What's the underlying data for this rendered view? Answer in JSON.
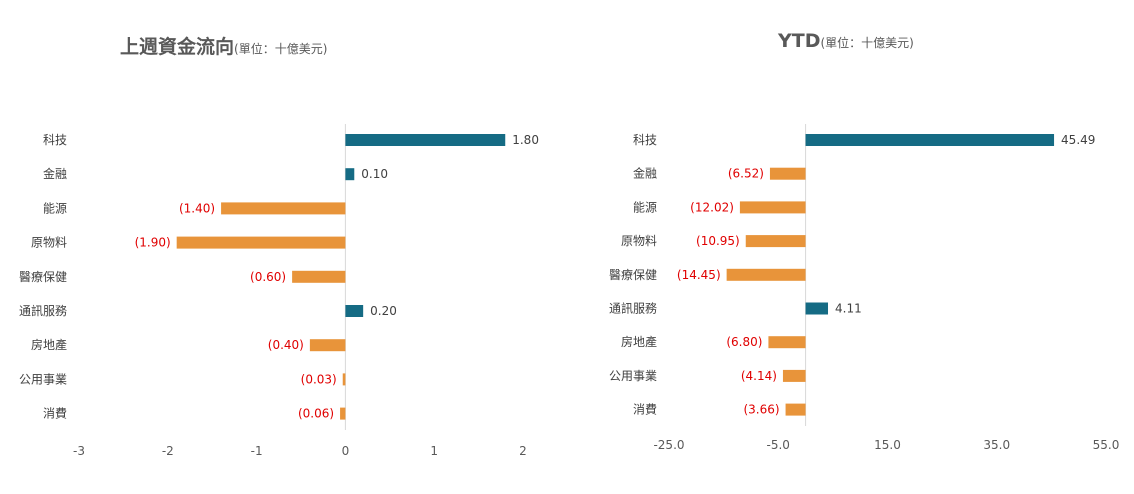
{
  "chart_data": [
    {
      "type": "bar",
      "orientation": "horizontal",
      "title": "上週資金流向",
      "unit": "(單位：十億美元)",
      "categories": [
        "科技",
        "金融",
        "能源",
        "原物料",
        "醫療保健",
        "通訊服務",
        "房地產",
        "公用事業",
        "消費"
      ],
      "values": [
        1.8,
        0.1,
        -1.4,
        -1.9,
        -0.6,
        0.2,
        -0.4,
        -0.03,
        -0.06
      ],
      "labels": [
        "1.80",
        "0.10",
        "(1.40)",
        "(1.90)",
        "(0.60)",
        "0.20",
        "(0.40)",
        "(0.03)",
        "(0.06)"
      ],
      "xlim": [
        -3,
        2
      ],
      "xticks": [
        "-3",
        "-2",
        "-1",
        "0",
        "1",
        "2"
      ],
      "xtick_values": [
        -3,
        -2,
        -1,
        0,
        1,
        2
      ],
      "grid": false,
      "colors": {
        "positive": "#156b84",
        "negative": "#e8943a",
        "negative_label": "#e00000"
      }
    },
    {
      "type": "bar",
      "orientation": "horizontal",
      "title": "YTD",
      "unit": "(單位：十億美元)",
      "categories": [
        "科技",
        "金融",
        "能源",
        "原物料",
        "醫療保健",
        "通訊服務",
        "房地產",
        "公用事業",
        "消費"
      ],
      "values": [
        45.49,
        -6.52,
        -12.02,
        -10.95,
        -14.45,
        4.11,
        -6.8,
        -4.14,
        -3.66
      ],
      "labels": [
        "45.49",
        "(6.52)",
        "(12.02)",
        "(10.95)",
        "(14.45)",
        "4.11",
        "(6.80)",
        "(4.14)",
        "(3.66)"
      ],
      "xlim": [
        -25,
        55
      ],
      "xticks": [
        "-25.0",
        "-5.0",
        "15.0",
        "35.0",
        "55.0"
      ],
      "xtick_values": [
        -25,
        -5,
        15,
        35,
        55
      ],
      "grid": false,
      "colors": {
        "positive": "#156b84",
        "negative": "#e8943a",
        "negative_label": "#e00000"
      }
    }
  ]
}
